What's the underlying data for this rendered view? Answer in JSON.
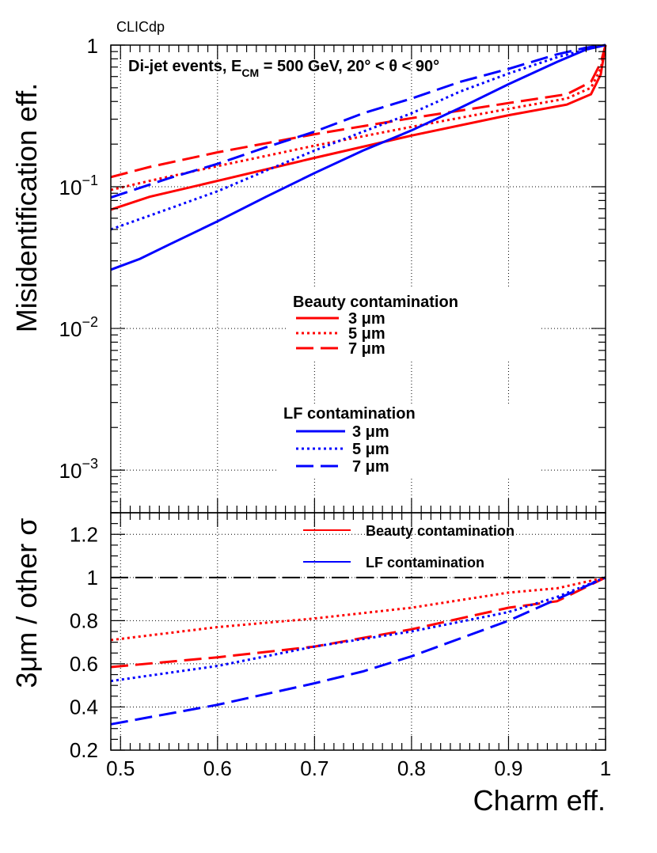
{
  "watermark": "CLICdp",
  "annotation": {
    "prefix": "Di-jet events, E",
    "sub": "CM",
    "suffix": " = 500 GeV, 20° <  θ < 90°"
  },
  "colors": {
    "beauty": "#ff0000",
    "lf": "#0000ff",
    "grid": "#000000",
    "ref": "#000000"
  },
  "chart_data": [
    {
      "type": "line",
      "id": "top",
      "yscale": "log",
      "xlim": [
        0.49,
        1.0
      ],
      "ylim": [
        0.0005,
        1.0
      ],
      "xticks": [
        0.5,
        0.6,
        0.7,
        0.8,
        0.9,
        1.0
      ],
      "yticks": [
        {
          "value": 1,
          "base": "1",
          "exp": ""
        },
        {
          "value": 0.1,
          "base": "10",
          "exp": "−1"
        },
        {
          "value": 0.01,
          "base": "10",
          "exp": "−2"
        },
        {
          "value": 0.001,
          "base": "10",
          "exp": "−3"
        }
      ],
      "ylabel": "Misidentification eff.",
      "xlabel": "",
      "grid": true,
      "legends": [
        {
          "title": "Beauty contamination",
          "entries": [
            {
              "label": "3  μm",
              "series": "beauty-3"
            },
            {
              "label": "5  μm",
              "series": "beauty-5"
            },
            {
              "label": "7  μm",
              "series": "beauty-7"
            }
          ]
        },
        {
          "title": "LF contamination",
          "entries": [
            {
              "label": "3  μm",
              "series": "lf-3"
            },
            {
              "label": "5  μm",
              "series": "lf-5"
            },
            {
              "label": "7  μm",
              "series": "lf-7"
            }
          ]
        }
      ],
      "series": [
        {
          "id": "beauty-3",
          "name": "Beauty contamination 3 μm",
          "color": "beauty",
          "dash": "solid",
          "x": [
            0.49,
            0.53,
            0.6,
            0.7,
            0.8,
            0.9,
            0.96,
            0.985,
            0.995,
            1.0
          ],
          "y": [
            0.069,
            0.085,
            0.11,
            0.16,
            0.23,
            0.32,
            0.38,
            0.45,
            0.62,
            1.0
          ]
        },
        {
          "id": "beauty-5",
          "name": "Beauty contamination 5 μm",
          "color": "beauty",
          "dash": "dot",
          "x": [
            0.49,
            0.53,
            0.6,
            0.7,
            0.8,
            0.9,
            0.96,
            0.985,
            0.995,
            1.0
          ],
          "y": [
            0.095,
            0.11,
            0.14,
            0.195,
            0.265,
            0.355,
            0.42,
            0.5,
            0.68,
            1.0
          ]
        },
        {
          "id": "beauty-7",
          "name": "Beauty contamination 7 μm",
          "color": "beauty",
          "dash": "long",
          "x": [
            0.49,
            0.53,
            0.6,
            0.7,
            0.8,
            0.9,
            0.96,
            0.985,
            0.995,
            1.0
          ],
          "y": [
            0.117,
            0.138,
            0.175,
            0.235,
            0.305,
            0.39,
            0.45,
            0.55,
            0.75,
            1.0
          ]
        },
        {
          "id": "lf-3",
          "name": "LF contamination 3 μm",
          "color": "lf",
          "dash": "solid",
          "x": [
            0.49,
            0.52,
            0.55,
            0.6,
            0.65,
            0.7,
            0.75,
            0.8,
            0.85,
            0.9,
            0.95,
            0.98,
            1.0
          ],
          "y": [
            0.026,
            0.031,
            0.039,
            0.057,
            0.085,
            0.125,
            0.18,
            0.25,
            0.36,
            0.53,
            0.76,
            0.93,
            1.0
          ]
        },
        {
          "id": "lf-5",
          "name": "LF contamination 5 μm",
          "color": "lf",
          "dash": "dot",
          "x": [
            0.49,
            0.55,
            0.6,
            0.65,
            0.7,
            0.75,
            0.8,
            0.85,
            0.9,
            0.95,
            0.98,
            1.0
          ],
          "y": [
            0.05,
            0.07,
            0.093,
            0.13,
            0.18,
            0.245,
            0.33,
            0.47,
            0.63,
            0.82,
            0.93,
            1.0
          ]
        },
        {
          "id": "lf-7",
          "name": "LF contamination 7 μm",
          "color": "lf",
          "dash": "long",
          "x": [
            0.49,
            0.55,
            0.6,
            0.65,
            0.7,
            0.75,
            0.8,
            0.85,
            0.9,
            0.95,
            0.98,
            1.0
          ],
          "y": [
            0.084,
            0.115,
            0.145,
            0.19,
            0.245,
            0.33,
            0.42,
            0.55,
            0.68,
            0.86,
            0.96,
            1.0
          ]
        }
      ]
    },
    {
      "type": "line",
      "id": "ratio",
      "yscale": "linear",
      "xlim": [
        0.49,
        1.0
      ],
      "ylim": [
        0.2,
        1.3
      ],
      "xticks": [
        0.5,
        0.6,
        0.7,
        0.8,
        0.9,
        1.0
      ],
      "xticklabels": [
        "0.5",
        "0.6",
        "0.7",
        "0.8",
        "0.9",
        "1"
      ],
      "yticks": [
        0.2,
        0.4,
        0.6,
        0.8,
        1.0,
        1.2
      ],
      "yticklabels": [
        "0.2",
        "0.4",
        "0.6",
        "0.8",
        "1",
        "1.2"
      ],
      "ylabel": "3μm / other σ",
      "xlabel": "Charm eff.",
      "grid": true,
      "reference_line": 1.0,
      "legend": [
        {
          "label": "Beauty contamination",
          "color": "beauty"
        },
        {
          "label": "LF contamination",
          "color": "lf"
        }
      ],
      "series": [
        {
          "id": "ratio-beauty-5",
          "name": "Beauty 3μm / 5μm",
          "color": "beauty",
          "dash": "dot",
          "x": [
            0.49,
            0.6,
            0.7,
            0.8,
            0.9,
            0.95,
            1.0
          ],
          "y": [
            0.71,
            0.77,
            0.81,
            0.86,
            0.93,
            0.95,
            1.0
          ]
        },
        {
          "id": "ratio-beauty-7",
          "name": "Beauty 3μm / 7μm",
          "color": "beauty",
          "dash": "long",
          "x": [
            0.49,
            0.6,
            0.7,
            0.8,
            0.9,
            0.95,
            1.0
          ],
          "y": [
            0.585,
            0.63,
            0.68,
            0.76,
            0.86,
            0.89,
            1.0
          ]
        },
        {
          "id": "ratio-lf-5",
          "name": "LF 3μm / 5μm",
          "color": "lf",
          "dash": "dot",
          "x": [
            0.49,
            0.6,
            0.7,
            0.8,
            0.9,
            0.95,
            1.0
          ],
          "y": [
            0.52,
            0.59,
            0.68,
            0.75,
            0.84,
            0.91,
            1.0
          ]
        },
        {
          "id": "ratio-lf-7",
          "name": "LF 3μm / 7μm",
          "color": "lf",
          "dash": "long",
          "x": [
            0.49,
            0.6,
            0.7,
            0.75,
            0.8,
            0.9,
            1.0
          ],
          "y": [
            0.32,
            0.41,
            0.51,
            0.565,
            0.635,
            0.8,
            1.0
          ]
        }
      ]
    }
  ]
}
